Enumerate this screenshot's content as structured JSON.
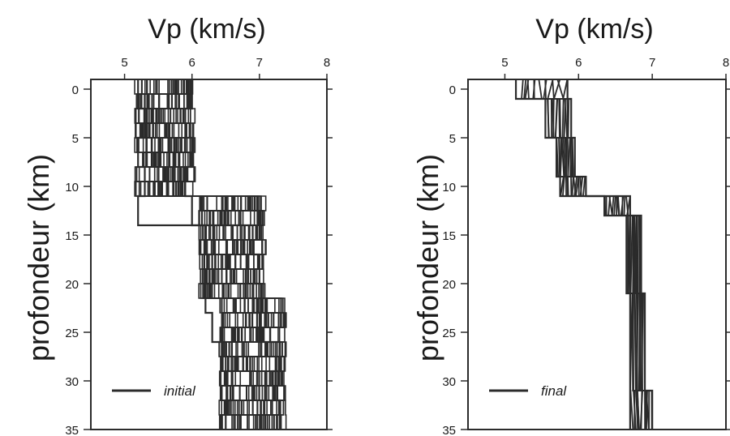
{
  "chart_data": [
    {
      "type": "line",
      "xlabel": "Vp (km/s)",
      "ylabel": "profondeur (km)",
      "xlim": [
        4.5,
        8
      ],
      "ylim": [
        35,
        -1
      ],
      "xticks": [
        5,
        6,
        7,
        8
      ],
      "yticks": [
        0,
        5,
        10,
        15,
        20,
        25,
        30,
        35
      ],
      "legend": {
        "label": "initial",
        "placement": "bottom-left"
      },
      "layers": [
        {
          "top": -1,
          "bottom": 11,
          "vmin": 5.15,
          "vmax": 6.05
        },
        {
          "top": 11,
          "bottom": 21,
          "vmin": 6.1,
          "vmax": 7.1
        },
        {
          "top": 21,
          "bottom": 35,
          "vmin": 6.4,
          "vmax": 7.4
        }
      ],
      "series": [
        {
          "values": [
            5.2,
            5.2,
            5.3,
            5.3,
            5.2,
            5.2,
            5.3,
            5.3,
            5.2,
            5.2,
            6.2,
            6.2,
            6.3,
            6.3,
            6.2,
            6.2,
            6.3,
            6.3,
            6.5,
            6.5,
            6.6,
            6.6,
            6.5,
            6.5
          ]
        },
        {
          "values": [
            6.0,
            6.0,
            5.9,
            5.9,
            6.0,
            6.0,
            5.9,
            5.9,
            6.0,
            6.0,
            6.9,
            6.9,
            7.0,
            7.0,
            6.9,
            6.9,
            7.0,
            7.0,
            7.3,
            7.3,
            7.2,
            7.2,
            7.3,
            7.3
          ]
        }
      ]
    },
    {
      "type": "line",
      "xlabel": "Vp (km/s)",
      "ylabel": "profondeur (km)",
      "xlim": [
        4.5,
        8
      ],
      "ylim": [
        35,
        -1
      ],
      "xticks": [
        5,
        6,
        7,
        8
      ],
      "yticks": [
        0,
        5,
        10,
        15,
        20,
        25,
        30,
        35
      ],
      "legend": {
        "label": "final",
        "placement": "bottom-left"
      },
      "series": [
        {
          "values": [
            5.15,
            5.15,
            5.55,
            5.55,
            5.7,
            5.7,
            5.75,
            5.75,
            6.35,
            6.35,
            6.65,
            6.65,
            6.7,
            6.7,
            6.7,
            6.7
          ]
        },
        {
          "values": [
            5.85,
            5.85,
            5.9,
            5.9,
            5.95,
            5.95,
            6.1,
            6.1,
            6.7,
            6.7,
            6.85,
            6.85,
            6.9,
            6.9,
            7.0,
            7.0
          ]
        }
      ],
      "depth": [
        -1,
        1,
        1,
        5,
        5,
        9,
        9,
        11,
        11,
        13,
        13,
        21,
        21,
        31,
        31,
        35
      ]
    }
  ]
}
